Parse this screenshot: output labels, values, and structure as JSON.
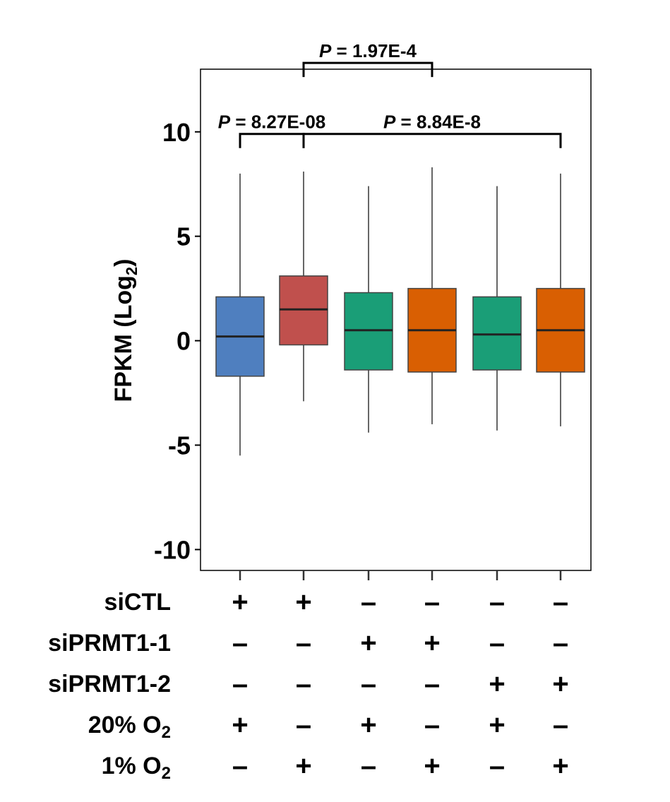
{
  "chart_data": {
    "type": "box",
    "ylabel_main": "FPKM (Log",
    "ylabel_sub": "2",
    "ylabel_close": ")",
    "ylim": [
      -11,
      13
    ],
    "yticks": [
      {
        "value": 10,
        "label": "10"
      },
      {
        "value": 5,
        "label": "5"
      },
      {
        "value": 0,
        "label": "0"
      },
      {
        "value": -5,
        "label": "-5"
      },
      {
        "value": -10,
        "label": "-10"
      }
    ],
    "grid": false,
    "boxes": [
      {
        "color": "#4F7FBF",
        "whisker_low": -5.5,
        "q1": -1.7,
        "median": 0.2,
        "q3": 2.1,
        "whisker_high": 8.0
      },
      {
        "color": "#C0504D",
        "whisker_low": -2.9,
        "q1": -0.2,
        "median": 1.5,
        "q3": 3.1,
        "whisker_high": 8.1
      },
      {
        "color": "#1A9E77",
        "whisker_low": -4.4,
        "q1": -1.4,
        "median": 0.5,
        "q3": 2.3,
        "whisker_high": 7.4
      },
      {
        "color": "#D95F02",
        "whisker_low": -4.0,
        "q1": -1.5,
        "median": 0.5,
        "q3": 2.5,
        "whisker_high": 8.3
      },
      {
        "color": "#1A9E77",
        "whisker_low": -4.3,
        "q1": -1.4,
        "median": 0.3,
        "q3": 2.1,
        "whisker_high": 7.4
      },
      {
        "color": "#D95F02",
        "whisker_low": -4.1,
        "q1": -1.5,
        "median": 0.5,
        "q3": 2.5,
        "whisker_high": 8.0
      }
    ],
    "comparisons": [
      {
        "from": 1,
        "to": 2,
        "p_italic": "P",
        "p_text": " = 8.27E-08",
        "y": 9.9
      },
      {
        "from": 2,
        "to": 6,
        "p_italic": "P",
        "p_text": " = 8.84E-8",
        "y": 9.9
      },
      {
        "from": 2,
        "to": 4,
        "p_italic": "P",
        "p_text": " = 1.97E-4",
        "y": 13.3
      }
    ],
    "condition_rows": [
      {
        "label": "siCTL",
        "sub": "",
        "values": [
          "+",
          "+",
          "–",
          "–",
          "–",
          "–"
        ]
      },
      {
        "label": "siPRMT1-1",
        "sub": "",
        "values": [
          "–",
          "–",
          "+",
          "+",
          "–",
          "–"
        ]
      },
      {
        "label": "siPRMT1-2",
        "sub": "",
        "values": [
          "–",
          "–",
          "–",
          "–",
          "+",
          "+"
        ]
      },
      {
        "label": "20% O",
        "sub": "2",
        "values": [
          "+",
          "–",
          "+",
          "–",
          "+",
          "–"
        ]
      },
      {
        "label": "1% O",
        "sub": "2",
        "values": [
          "–",
          "+",
          "–",
          "+",
          "–",
          "+"
        ]
      }
    ]
  }
}
